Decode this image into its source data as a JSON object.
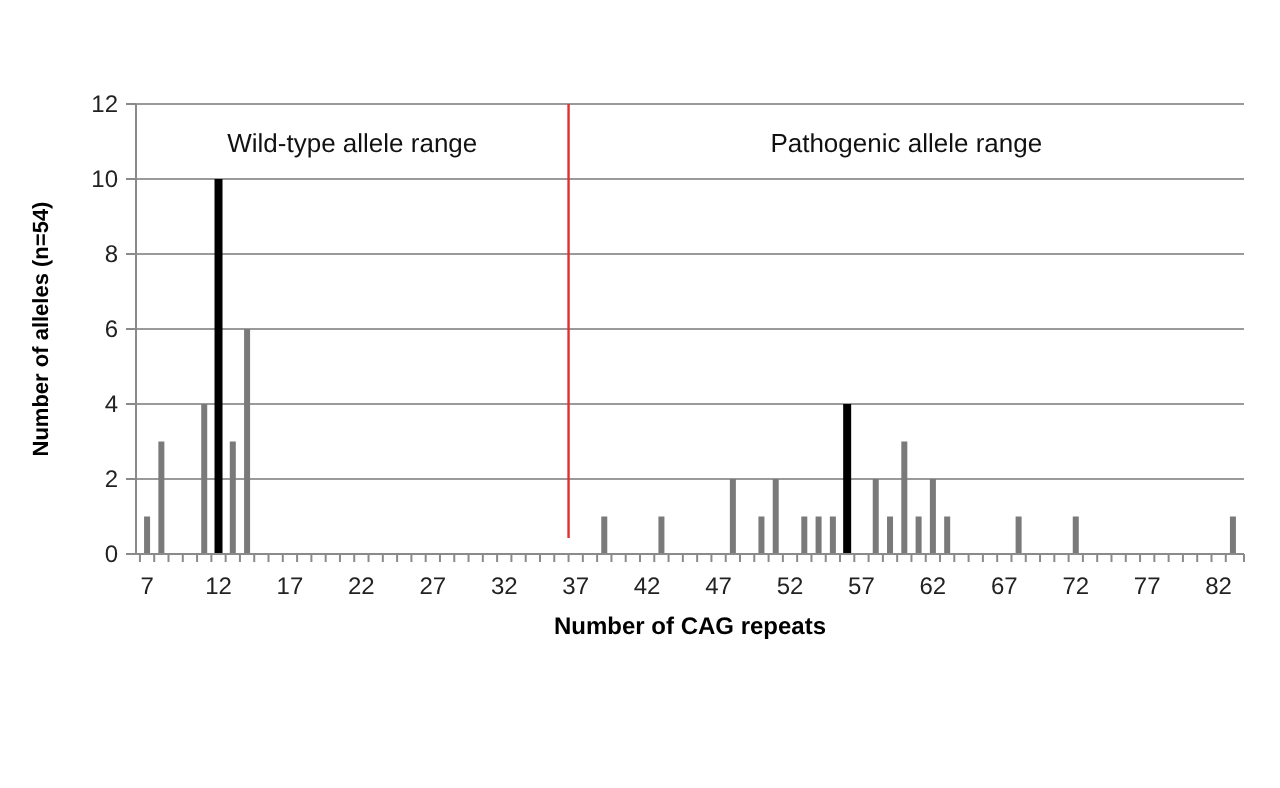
{
  "chart_data": {
    "type": "bar",
    "xlabel": "Number of CAG repeats",
    "ylabel": "Number of alleles (n=54)",
    "categories": [
      "7",
      null,
      null,
      null,
      null,
      "12",
      null,
      null,
      null,
      null,
      "17",
      null,
      null,
      null,
      null,
      "22",
      null,
      null,
      null,
      null,
      "27",
      null,
      null,
      null,
      null,
      "32",
      null,
      null,
      null,
      null,
      "37",
      null,
      null,
      null,
      null,
      "42",
      null,
      null,
      null,
      null,
      "47",
      null,
      null,
      null,
      null,
      "52",
      null,
      null,
      null,
      null,
      "57",
      null,
      null,
      null,
      null,
      "62",
      null,
      null,
      null,
      null,
      "67",
      null,
      null,
      null,
      null,
      "72",
      null,
      null,
      null,
      null,
      "77",
      null,
      null,
      null,
      null,
      "82",
      null
    ],
    "values": [
      1,
      3,
      0,
      0,
      4,
      10,
      3,
      6,
      0,
      0,
      0,
      0,
      0,
      0,
      0,
      0,
      0,
      0,
      0,
      0,
      0,
      0,
      0,
      0,
      0,
      0,
      0,
      0,
      0,
      0,
      0,
      0,
      1,
      0,
      0,
      0,
      1,
      0,
      0,
      0,
      0,
      2,
      0,
      1,
      2,
      0,
      1,
      1,
      1,
      4,
      0,
      2,
      1,
      3,
      1,
      2,
      1,
      0,
      0,
      0,
      0,
      1,
      0,
      0,
      0,
      1,
      0,
      0,
      0,
      0,
      0,
      0,
      0,
      0,
      0,
      0,
      1
    ],
    "colors": [
      "#7a7a7a",
      "#7a7a7a",
      "#7a7a7a",
      "#7a7a7a",
      "#7a7a7a",
      "#000000",
      "#7a7a7a",
      "#7a7a7a",
      "#7a7a7a",
      "#7a7a7a",
      "#7a7a7a",
      "#7a7a7a",
      "#7a7a7a",
      "#7a7a7a",
      "#7a7a7a",
      "#7a7a7a",
      "#7a7a7a",
      "#7a7a7a",
      "#7a7a7a",
      "#7a7a7a",
      "#7a7a7a",
      "#7a7a7a",
      "#7a7a7a",
      "#7a7a7a",
      "#7a7a7a",
      "#7a7a7a",
      "#7a7a7a",
      "#7a7a7a",
      "#7a7a7a",
      "#7a7a7a",
      "#7a7a7a",
      "#7a7a7a",
      "#7a7a7a",
      "#7a7a7a",
      "#7a7a7a",
      "#7a7a7a",
      "#7a7a7a",
      "#7a7a7a",
      "#7a7a7a",
      "#7a7a7a",
      "#7a7a7a",
      "#7a7a7a",
      "#7a7a7a",
      "#7a7a7a",
      "#7a7a7a",
      "#7a7a7a",
      "#7a7a7a",
      "#7a7a7a",
      "#7a7a7a",
      "#000000",
      "#7a7a7a",
      "#7a7a7a",
      "#7a7a7a",
      "#7a7a7a",
      "#7a7a7a",
      "#7a7a7a",
      "#7a7a7a",
      "#7a7a7a",
      "#7a7a7a",
      "#7a7a7a",
      "#7a7a7a",
      "#7a7a7a",
      "#7a7a7a",
      "#7a7a7a",
      "#7a7a7a",
      "#7a7a7a",
      "#7a7a7a",
      "#7a7a7a",
      "#7a7a7a",
      "#7a7a7a",
      "#7a7a7a",
      "#7a7a7a",
      "#7a7a7a",
      "#7a7a7a",
      "#7a7a7a",
      "#7a7a7a",
      "#7a7a7a"
    ],
    "ylim": [
      0,
      12
    ],
    "yticks": [
      0,
      2,
      4,
      6,
      8,
      10,
      12
    ],
    "grid": "y",
    "ref_lines": [
      {
        "axis": "x",
        "value": "37",
        "color": "#e03030"
      }
    ],
    "annotations": [
      "Wild-type allele range",
      "Pathogenic allele range"
    ]
  }
}
